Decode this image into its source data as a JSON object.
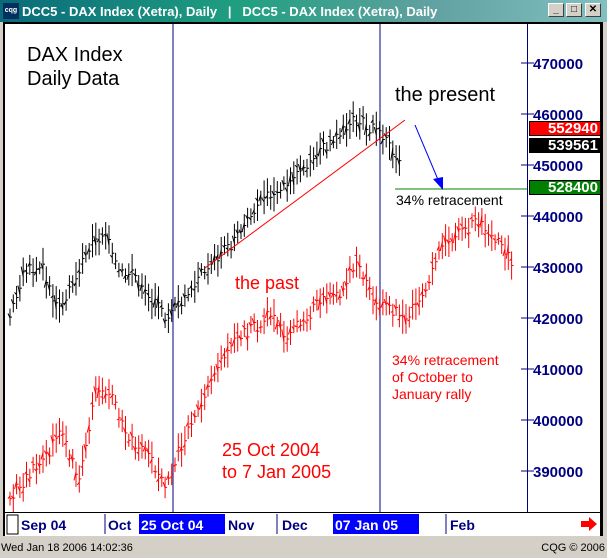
{
  "window": {
    "title": "DCC5 - DAX Index (Xetra), Daily   |   DCC5 - DAX Index (Xetra), Daily",
    "icon": "cqg-logo-icon",
    "buttons": [
      "minimize",
      "maximize",
      "close"
    ]
  },
  "annotations": {
    "title": "DAX Index\nDaily Data",
    "present": "the present",
    "past": "the past",
    "retracement_label": "34% retracement",
    "retracement_note": "34% retracement\nof October to\nJanuary rally",
    "date_range": "25 Oct 2004\nto 7 Jan 2005"
  },
  "price_badges": [
    {
      "value": "552940",
      "color": "#ff0000"
    },
    {
      "value": "539561",
      "color": "#000000"
    },
    {
      "value": "528400",
      "color": "#008000"
    }
  ],
  "status": {
    "timestamp": "Wed Jan 18 2006 14:02:36",
    "copyright": "CQG © 2006"
  },
  "chart_data": {
    "type": "ohlc",
    "yticks": [
      390000,
      400000,
      410000,
      420000,
      430000,
      440000,
      450000,
      460000,
      470000
    ],
    "ytick_labels": [
      "390000",
      "400000",
      "410000",
      "420000",
      "430000",
      "440000",
      "450000",
      "460000",
      "470000"
    ],
    "ylim": [
      380000,
      478000
    ],
    "xtick_labels": [
      "Sep 04",
      "Oct",
      "Nov",
      "Dec",
      "Jan",
      "Feb"
    ],
    "highlighted_dates": [
      "25 Oct 04",
      "07 Jan 05"
    ],
    "grid": false,
    "series": [
      {
        "color": "#000000",
        "closes": [
          420600,
          429400,
          430400,
          422500,
          425500,
          433300,
          436300,
          430400,
          428400,
          423500,
          420600,
          423500,
          427500,
          431000,
          433700,
          437600,
          442200,
          445100,
          447100,
          450000,
          453300,
          455300,
          458800,
          457800,
          454900,
          451400
        ]
      },
      {
        "color": "#ff0000",
        "closes": [
          384300,
          389200,
          392200,
          398000,
          388200,
          406900,
          403900,
          396100,
          393100,
          386300,
          396100,
          402000,
          409800,
          415700,
          417600,
          420600,
          416700,
          419600,
          423500,
          424500,
          430400,
          423500,
          421600,
          420600,
          425500,
          434300,
          436300,
          439200,
          435300,
          431400
        ]
      }
    ],
    "trendline_color": "#ff0000",
    "retracement_level_color": "#008000",
    "arrow_color": "#0000ff"
  }
}
